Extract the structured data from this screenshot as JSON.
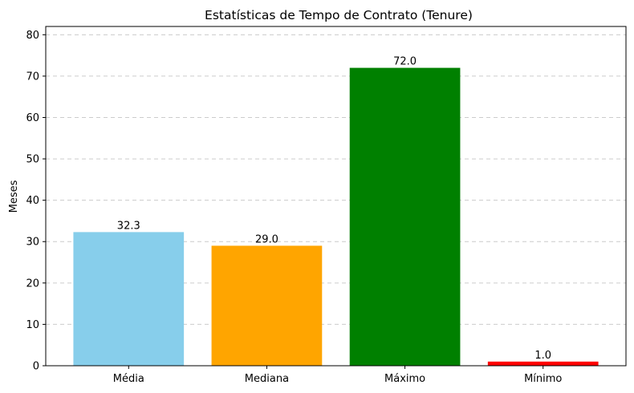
{
  "chart_data": {
    "type": "bar",
    "title": "Estatísticas de Tempo de Contrato (Tenure)",
    "xlabel": "",
    "ylabel": "Meses",
    "categories": [
      "Média",
      "Mediana",
      "Máximo",
      "Mínimo"
    ],
    "values": [
      32.3,
      29.0,
      72.0,
      1.0
    ],
    "data_labels": [
      "32.3",
      "29.0",
      "72.0",
      "1.0"
    ],
    "colors": [
      "#87ceeb",
      "#ffa500",
      "#008000",
      "#ff0000"
    ],
    "ylim": [
      0,
      82
    ],
    "yticks": [
      0,
      10,
      20,
      30,
      40,
      50,
      60,
      70,
      80
    ],
    "grid": "horizontal dashed",
    "legend": "none"
  }
}
